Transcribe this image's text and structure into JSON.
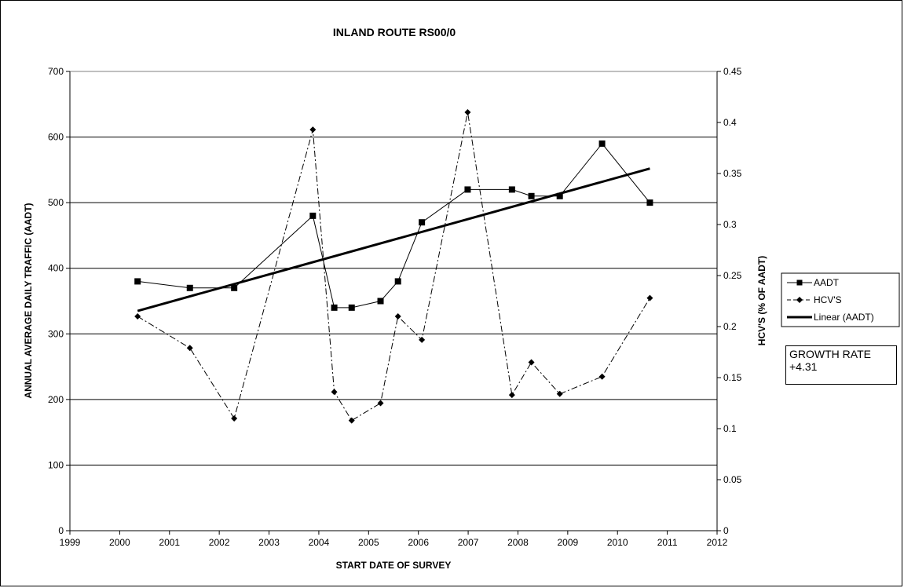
{
  "chart_data": {
    "type": "line",
    "title": "INLAND ROUTE RS00/0",
    "xlabel": "START DATE OF SURVEY",
    "ylabel": "ANNUAL AVERAGE DAILY TRAFFIC (AADT)",
    "y2label": "HCV'S (% OF AADT)",
    "xlim": [
      1999,
      2012
    ],
    "ylim": [
      0,
      700
    ],
    "y2lim": [
      0,
      0.45
    ],
    "x_ticks": [
      "1999",
      "2000",
      "2001",
      "2002",
      "2003",
      "2004",
      "2005",
      "2006",
      "2007",
      "2008",
      "2009",
      "2010",
      "2011",
      "2012"
    ],
    "y_ticks": [
      "0",
      "100",
      "200",
      "300",
      "400",
      "500",
      "600",
      "700"
    ],
    "y2_ticks": [
      "0",
      "0.05",
      "0.1",
      "0.15",
      "0.2",
      "0.25",
      "0.3",
      "0.35",
      "0.4",
      "0.45"
    ],
    "grid": "horizontal major gridlines",
    "legend_position": "right",
    "series": [
      {
        "name": "AADT",
        "axis": "left",
        "style": "solid line, square markers",
        "color": "#000000",
        "x": [
          2000.36,
          2001.41,
          2002.3,
          2003.88,
          2004.31,
          2004.66,
          2005.24,
          2005.59,
          2006.07,
          2006.99,
          2007.88,
          2008.27,
          2008.84,
          2009.69,
          2010.65
        ],
        "values": [
          380,
          370,
          370,
          480,
          340,
          340,
          350,
          380,
          470,
          520,
          520,
          510,
          510,
          590,
          500
        ]
      },
      {
        "name": "HCV'S",
        "axis": "right",
        "style": "dash-dot line, diamond markers",
        "color": "#000000",
        "x": [
          2000.36,
          2001.41,
          2002.3,
          2003.88,
          2004.31,
          2004.66,
          2005.24,
          2005.59,
          2006.07,
          2006.99,
          2007.88,
          2008.27,
          2008.84,
          2009.69,
          2010.65
        ],
        "values": [
          0.21,
          0.179,
          0.11,
          0.393,
          0.136,
          0.108,
          0.125,
          0.21,
          0.187,
          0.41,
          0.133,
          0.165,
          0.134,
          0.151,
          0.228
        ]
      },
      {
        "name": "Linear (AADT)",
        "axis": "left",
        "style": "thick solid line",
        "color": "#000000",
        "x": [
          2000.36,
          2010.65
        ],
        "values": [
          335,
          552
        ]
      }
    ],
    "annotation": {
      "line1": "GROWTH RATE",
      "line2": "+4.31"
    }
  }
}
